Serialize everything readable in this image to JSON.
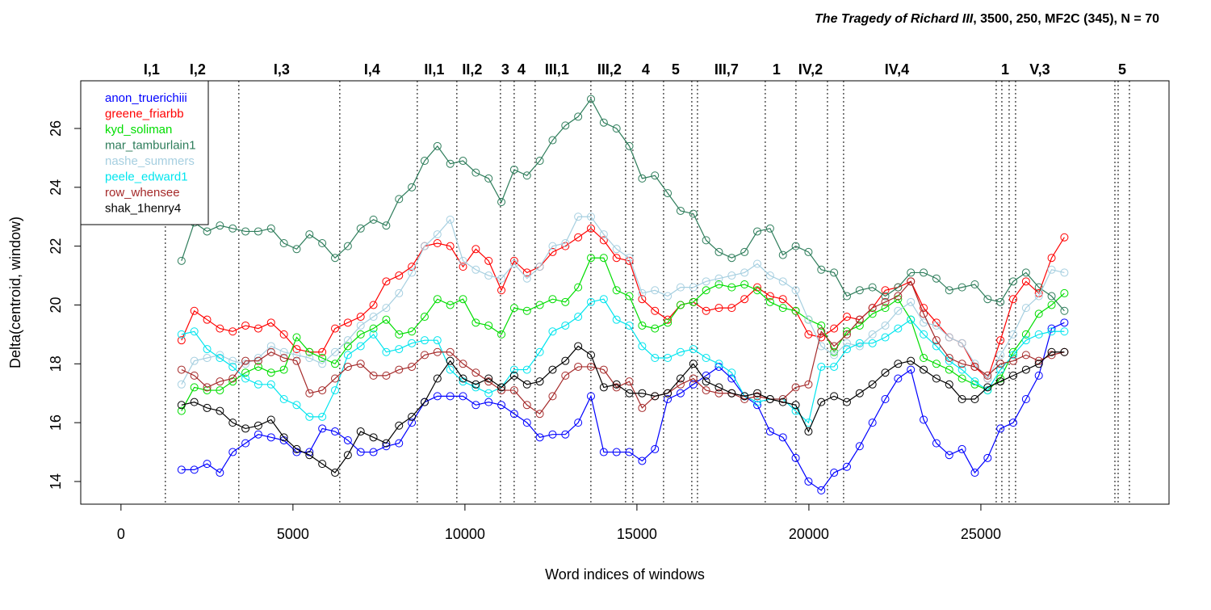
{
  "chart_data": {
    "type": "line",
    "title": {
      "italic": "The Tragedy of Richard III",
      "rest": ", 3500, 250, MF2C (345), N = 70"
    },
    "xlabel": "Word indices of windows",
    "ylabel": "Delta(centroid, window)",
    "xlim": [
      -1170,
      30470
    ],
    "ylim": [
      13.23,
      27.62
    ],
    "xticks": [
      0,
      5000,
      10000,
      15000,
      20000,
      25000
    ],
    "yticks": [
      14,
      16,
      18,
      20,
      22,
      24,
      26
    ],
    "legend": "top-left",
    "scene_lines": [
      1291,
      3427,
      6362,
      8615,
      9765,
      11033,
      11432,
      12042,
      13662,
      14671,
      14883,
      15775,
      16596,
      16761,
      18732,
      19624,
      20540,
      21009,
      25446,
      25610,
      25822,
      26009,
      28897,
      28991,
      29319
    ],
    "scene_labels": [
      {
        "text": "I,1",
        "x": 892
      },
      {
        "text": "I,2",
        "x": 2230
      },
      {
        "text": "I,3",
        "x": 4671
      },
      {
        "text": "I,4",
        "x": 7300
      },
      {
        "text": "II,1",
        "x": 9108
      },
      {
        "text": "II,2",
        "x": 10211
      },
      {
        "text": "3",
        "x": 11174
      },
      {
        "text": "4",
        "x": 11643
      },
      {
        "text": "III,1",
        "x": 12676
      },
      {
        "text": "III,2",
        "x": 14202
      },
      {
        "text": "4",
        "x": 15258
      },
      {
        "text": "5",
        "x": 16127
      },
      {
        "text": "III,7",
        "x": 17606
      },
      {
        "text": "1",
        "x": 19061
      },
      {
        "text": "IV,2",
        "x": 20047
      },
      {
        "text": "IV,4",
        "x": 22559
      },
      {
        "text": "1",
        "x": 25704
      },
      {
        "text": "V,3",
        "x": 26714
      },
      {
        "text": "5",
        "x": 29108
      }
    ],
    "x": [
      1760,
      2132,
      2504,
      2876,
      3248,
      3620,
      3992,
      4364,
      4736,
      5108,
      5480,
      5852,
      6224,
      6596,
      6968,
      7340,
      7712,
      8084,
      8456,
      8828,
      9200,
      9572,
      9944,
      10316,
      10688,
      11060,
      11432,
      11804,
      12176,
      12548,
      12920,
      13292,
      13664,
      14036,
      14408,
      14780,
      15152,
      15524,
      15896,
      16268,
      16640,
      17012,
      17384,
      17756,
      18128,
      18500,
      18872,
      19244,
      19616,
      19988,
      20360,
      20732,
      21104,
      21476,
      21848,
      22220,
      22592,
      22964,
      23336,
      23708,
      24080,
      24452,
      24824,
      25196,
      25568,
      25940,
      26312,
      26684,
      27056,
      27428
    ],
    "series": [
      {
        "name": "anon_truerichiii",
        "color": "#0000ff",
        "values": [
          14.4,
          14.4,
          14.6,
          14.3,
          15.0,
          15.3,
          15.6,
          15.5,
          15.4,
          15.0,
          15.0,
          15.8,
          15.7,
          15.4,
          15.0,
          15.0,
          15.2,
          15.3,
          16.0,
          16.7,
          16.9,
          16.9,
          16.9,
          16.6,
          16.7,
          16.6,
          16.3,
          16.0,
          15.5,
          15.6,
          15.6,
          16.0,
          16.9,
          15.0,
          15.0,
          15.0,
          14.7,
          15.1,
          16.8,
          17.0,
          17.3,
          17.6,
          17.9,
          17.5,
          16.9,
          16.6,
          15.7,
          15.5,
          14.8,
          14.0,
          13.7,
          14.3,
          14.5,
          15.2,
          16.0,
          16.8,
          17.5,
          17.8,
          16.1,
          15.3,
          14.9,
          15.1,
          14.3,
          14.8,
          15.8,
          16.0,
          16.8,
          17.6,
          19.2,
          19.4
        ]
      },
      {
        "name": "greene_friarbb",
        "color": "#ff0000",
        "values": [
          18.8,
          19.8,
          19.5,
          19.2,
          19.1,
          19.3,
          19.2,
          19.4,
          19.0,
          18.5,
          18.4,
          18.4,
          19.2,
          19.4,
          19.6,
          20.0,
          20.8,
          21.0,
          21.3,
          22.0,
          22.1,
          22.0,
          21.3,
          21.9,
          21.5,
          20.5,
          21.5,
          21.1,
          21.3,
          21.8,
          22.0,
          22.3,
          22.6,
          22.2,
          21.6,
          21.5,
          20.2,
          19.8,
          19.5,
          20.0,
          20.1,
          19.8,
          19.9,
          19.9,
          20.2,
          20.6,
          20.3,
          20.2,
          19.8,
          19.0,
          18.9,
          19.2,
          19.6,
          19.5,
          19.9,
          20.5,
          20.6,
          20.8,
          19.9,
          19.4,
          18.9,
          18.7,
          17.9,
          17.5,
          18.8,
          20.2,
          20.8,
          20.4,
          21.6,
          22.3
        ]
      },
      {
        "name": "kyd_soliman",
        "color": "#00dd00",
        "values": [
          16.4,
          17.2,
          17.1,
          17.1,
          17.4,
          17.7,
          17.9,
          17.7,
          17.8,
          18.9,
          18.4,
          18.2,
          18.0,
          18.6,
          19.0,
          19.2,
          19.5,
          19.0,
          19.1,
          19.6,
          20.2,
          20.0,
          20.2,
          19.4,
          19.3,
          19.0,
          19.9,
          19.8,
          20.0,
          20.2,
          20.1,
          20.6,
          21.6,
          21.6,
          20.5,
          20.3,
          19.3,
          19.2,
          19.4,
          20.0,
          20.1,
          20.5,
          20.7,
          20.6,
          20.7,
          20.5,
          20.1,
          19.9,
          19.8,
          19.5,
          19.3,
          18.4,
          19.1,
          19.3,
          19.7,
          19.9,
          20.2,
          19.5,
          18.2,
          18.0,
          17.8,
          17.5,
          17.3,
          17.1,
          17.5,
          18.4,
          19.0,
          19.7,
          20.0,
          20.4
        ]
      },
      {
        "name": "mar_tamburlain1",
        "color": "#2e7d5b",
        "values": [
          21.5,
          22.8,
          22.5,
          22.7,
          22.6,
          22.5,
          22.5,
          22.6,
          22.1,
          21.9,
          22.4,
          22.1,
          21.6,
          22.0,
          22.6,
          22.9,
          22.7,
          23.6,
          24.0,
          24.9,
          25.4,
          24.8,
          24.9,
          24.5,
          24.3,
          23.5,
          24.6,
          24.4,
          24.9,
          25.6,
          26.1,
          26.4,
          27.0,
          26.2,
          26.0,
          25.4,
          24.3,
          24.4,
          23.8,
          23.2,
          23.1,
          22.2,
          21.8,
          21.6,
          21.8,
          22.5,
          22.6,
          21.7,
          22.0,
          21.8,
          21.2,
          21.1,
          20.3,
          20.5,
          20.6,
          20.3,
          20.6,
          21.1,
          21.1,
          20.9,
          20.5,
          20.6,
          20.7,
          20.2,
          20.1,
          20.8,
          21.1,
          20.6,
          20.3,
          19.8
        ]
      },
      {
        "name": "nashe_summers",
        "color": "#a6cfe0",
        "values": [
          17.3,
          18.1,
          18.2,
          18.3,
          18.1,
          18.0,
          18.2,
          18.6,
          18.4,
          18.3,
          18.2,
          18.0,
          18.4,
          18.8,
          19.3,
          19.6,
          19.9,
          20.4,
          21.1,
          22.0,
          22.4,
          22.9,
          21.5,
          21.2,
          21.0,
          20.9,
          21.4,
          20.9,
          21.3,
          22.0,
          22.1,
          23.0,
          23.0,
          22.4,
          21.9,
          21.6,
          20.4,
          20.5,
          20.3,
          20.6,
          20.6,
          20.8,
          20.9,
          21.0,
          21.1,
          21.4,
          21.0,
          20.8,
          20.5,
          19.5,
          18.6,
          18.3,
          18.7,
          18.6,
          19.0,
          19.3,
          19.8,
          20.1,
          19.4,
          19.3,
          18.9,
          18.7,
          18.0,
          17.5,
          18.3,
          19.0,
          19.9,
          20.3,
          21.2,
          21.1
        ]
      },
      {
        "name": "peele_edward1",
        "color": "#00e5ee",
        "values": [
          19.0,
          19.1,
          18.5,
          18.2,
          17.9,
          17.5,
          17.3,
          17.3,
          16.8,
          16.6,
          16.2,
          16.2,
          17.1,
          18.3,
          18.6,
          19.0,
          18.4,
          18.5,
          18.7,
          18.8,
          18.8,
          17.8,
          17.4,
          17.2,
          17.0,
          17.2,
          17.8,
          17.8,
          18.4,
          19.1,
          19.3,
          19.6,
          20.1,
          20.2,
          19.5,
          19.3,
          18.6,
          18.2,
          18.2,
          18.4,
          18.5,
          18.2,
          18.0,
          17.7,
          16.9,
          16.7,
          16.8,
          16.8,
          16.4,
          16.0,
          17.9,
          17.9,
          18.5,
          18.7,
          18.7,
          18.9,
          19.2,
          19.5,
          19.0,
          18.6,
          18.1,
          17.8,
          17.4,
          17.1,
          17.8,
          18.3,
          18.8,
          19.0,
          19.1,
          19.1
        ]
      },
      {
        "name": "row_whensee",
        "color": "#a52a2a",
        "values": [
          17.8,
          17.6,
          17.2,
          17.4,
          17.5,
          18.1,
          18.1,
          18.4,
          18.2,
          18.1,
          17.0,
          17.1,
          17.5,
          17.9,
          18.0,
          17.6,
          17.6,
          17.8,
          17.9,
          18.3,
          18.4,
          18.4,
          18.0,
          17.7,
          17.4,
          17.1,
          17.1,
          16.6,
          16.3,
          16.9,
          17.6,
          17.9,
          17.9,
          17.8,
          17.2,
          17.4,
          16.5,
          16.9,
          17.0,
          17.3,
          17.5,
          17.1,
          17.0,
          17.0,
          16.8,
          16.9,
          16.8,
          16.8,
          17.2,
          17.3,
          19.1,
          18.6,
          19.0,
          19.5,
          19.9,
          20.1,
          20.3,
          20.8,
          19.7,
          18.8,
          18.2,
          18.0,
          17.9,
          17.6,
          18.0,
          18.1,
          18.3,
          18.1,
          18.3,
          18.4
        ]
      },
      {
        "name": "shak_1henry4",
        "color": "#000000",
        "values": [
          16.6,
          16.7,
          16.5,
          16.4,
          16.0,
          15.8,
          15.9,
          16.1,
          15.5,
          15.1,
          14.9,
          14.6,
          14.3,
          14.9,
          15.7,
          15.5,
          15.3,
          15.9,
          16.2,
          16.7,
          17.5,
          18.1,
          17.5,
          17.3,
          17.5,
          17.2,
          17.6,
          17.3,
          17.4,
          17.8,
          18.1,
          18.6,
          18.3,
          17.2,
          17.3,
          17.0,
          17.0,
          16.9,
          17.0,
          17.5,
          18.0,
          17.4,
          17.2,
          17.0,
          16.9,
          17.0,
          16.8,
          16.7,
          16.6,
          15.7,
          16.7,
          16.9,
          16.7,
          17.0,
          17.3,
          17.7,
          18.0,
          18.1,
          17.8,
          17.5,
          17.3,
          16.8,
          16.8,
          17.2,
          17.4,
          17.6,
          17.8,
          18.0,
          18.4,
          18.4
        ]
      }
    ]
  }
}
